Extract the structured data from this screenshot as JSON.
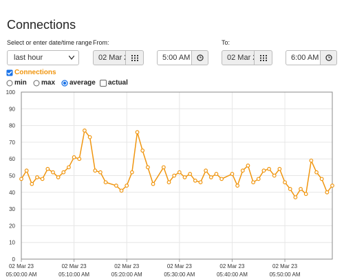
{
  "header": {
    "title": "Connections"
  },
  "controls": {
    "range_label": "Select or enter date/time range",
    "range_value": "last hour",
    "from_label": "From:",
    "from_date": "02 Mar 2",
    "from_time": "5:00 AM",
    "to_label": "To:",
    "to_date": "02 Mar 2",
    "to_time": "6:00 AM",
    "options": [
      "min",
      "max",
      "average",
      "actual"
    ]
  },
  "chart_data": {
    "type": "line",
    "x": [
      "05:00",
      "05:01",
      "05:02",
      "05:03",
      "05:04",
      "05:05",
      "05:06",
      "05:07",
      "05:08",
      "05:09",
      "05:10",
      "05:11",
      "05:12",
      "05:13",
      "05:14",
      "05:15",
      "05:16",
      "05:18",
      "05:19",
      "05:20",
      "05:21",
      "05:22",
      "05:23",
      "05:24",
      "05:25",
      "05:27",
      "05:28",
      "05:29",
      "05:30",
      "05:31",
      "05:32",
      "05:33",
      "05:34",
      "05:35",
      "05:36",
      "05:37",
      "05:38",
      "05:40",
      "05:41",
      "05:42",
      "05:43",
      "05:44",
      "05:45",
      "05:46",
      "05:47",
      "05:48",
      "05:49",
      "05:50",
      "05:51",
      "05:52",
      "05:53",
      "05:54",
      "05:55",
      "05:56",
      "05:57",
      "05:58",
      "05:59"
    ],
    "series": [
      {
        "name": "Connections",
        "color": "#f0950e",
        "values": [
          48,
          53,
          45,
          49,
          48,
          54,
          52,
          49,
          52,
          55,
          61,
          60,
          77,
          73,
          53,
          52,
          46,
          44,
          41,
          44,
          52,
          76,
          65,
          55,
          45,
          55,
          46,
          50,
          52,
          49,
          51,
          47,
          46,
          53,
          49,
          51,
          48,
          51,
          44,
          53,
          56,
          46,
          48,
          53,
          54,
          50,
          54,
          46,
          42,
          37,
          42,
          39,
          59,
          52,
          48,
          40,
          44
        ]
      }
    ],
    "xlim": [
      "05:00",
      "05:59"
    ],
    "xticks": [
      {
        "value": "05:00",
        "label": [
          "02 Mar 23",
          "05:00:00 AM"
        ]
      },
      {
        "value": "05:10",
        "label": [
          "02 Mar 23",
          "05:10:00 AM"
        ]
      },
      {
        "value": "05:20",
        "label": [
          "02 Mar 23",
          "05:20:00 AM"
        ]
      },
      {
        "value": "05:30",
        "label": [
          "02 Mar 23",
          "05:30:00 AM"
        ]
      },
      {
        "value": "05:40",
        "label": [
          "02 Mar 23",
          "05:40:00 AM"
        ]
      },
      {
        "value": "05:50",
        "label": [
          "02 Mar 23",
          "05:50:00 AM"
        ]
      }
    ],
    "ylim": [
      0,
      100
    ],
    "yticks": [
      0,
      10,
      20,
      30,
      40,
      50,
      60,
      70,
      80,
      90,
      100
    ],
    "grid": true
  }
}
